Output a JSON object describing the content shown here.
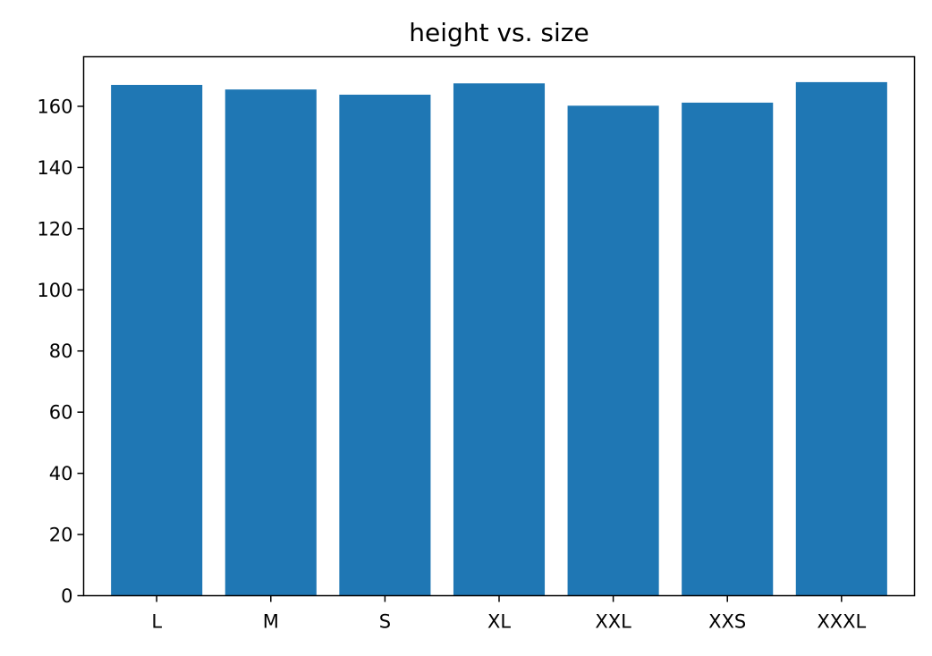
{
  "chart_data": {
    "type": "bar",
    "title": "height vs. size",
    "xlabel": "",
    "ylabel": "",
    "categories": [
      "L",
      "M",
      "S",
      "XL",
      "XXL",
      "XXS",
      "XXXL"
    ],
    "values": [
      167,
      165.5,
      163.8,
      167.5,
      160.2,
      161.2,
      167.9
    ],
    "ylim": [
      0,
      176.2
    ],
    "yticks": [
      0,
      20,
      40,
      60,
      80,
      100,
      120,
      140,
      160
    ],
    "bar_color": "#1f77b4",
    "grid": false,
    "legend": "none"
  }
}
